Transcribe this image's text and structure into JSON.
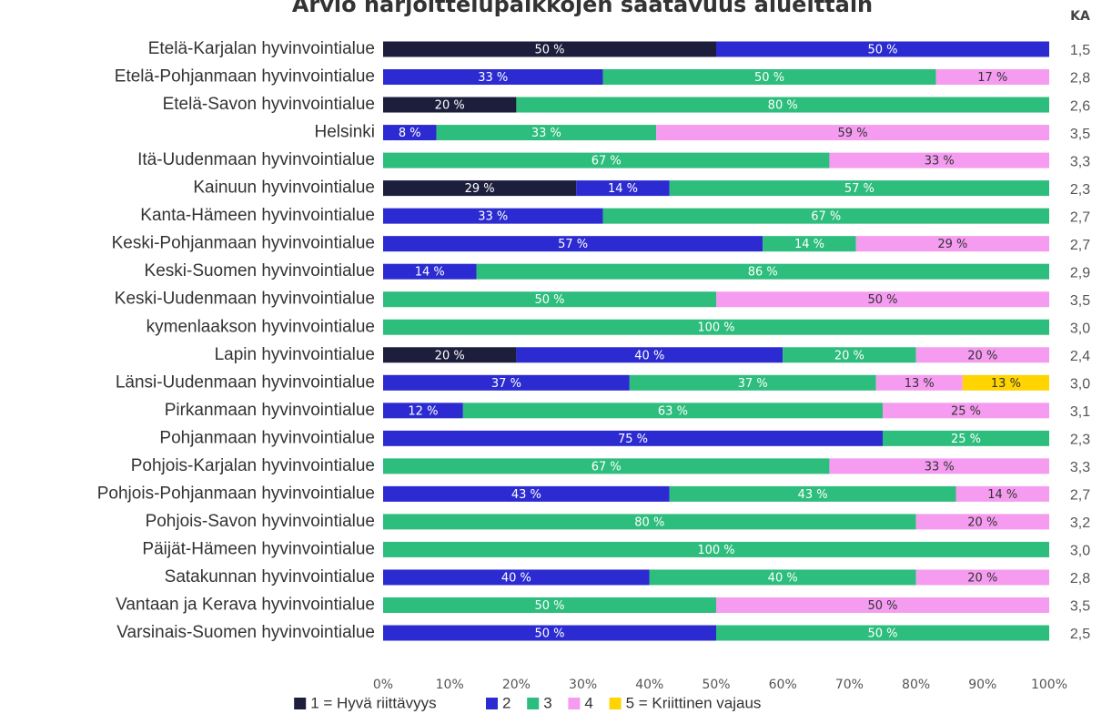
{
  "chart_data": {
    "type": "stacked_bar_horizontal",
    "title": "Arvio harjoittelupaikkojen saatavuus alueittain",
    "categories": [
      "Etelä-Karjalan hyvinvointialue",
      "Etelä-Pohjanmaan hyvinvointialue",
      "Etelä-Savon hyvinvointialue",
      "Helsinki",
      "Itä-Uudenmaan hyvinvointialue",
      "Kainuun hyvinvointialue",
      "Kanta-Hämeen hyvinvointialue",
      "Keski-Pohjanmaan hyvinvointialue",
      "Keski-Suomen hyvinvointialue",
      "Keski-Uudenmaan hyvinvointialue",
      "kymenlaakson hyvinvointialue",
      "Lapin hyvinvointialue",
      "Länsi-Uudenmaan hyvinvointialue",
      "Pirkanmaan hyvinvointialue",
      "Pohjanmaan hyvinvointialue",
      "Pohjois-Karjalan hyvinvointialue",
      "Pohjois-Pohjanmaan hyvinvointialue",
      "Pohjois-Savon hyvinvointialue",
      "Päijät-Hämeen hyvinvointialue",
      "Satakunnan hyvinvointialue",
      "Vantaan ja Kerava hyvinvointialue",
      "Varsinais-Suomen hyvinvointialue"
    ],
    "series": [
      {
        "name": "1 = Hyvä riittävyys",
        "color": "#1c1e3c",
        "values": [
          50,
          null,
          20,
          null,
          null,
          29,
          null,
          null,
          null,
          null,
          null,
          20,
          null,
          null,
          null,
          null,
          null,
          null,
          null,
          null,
          null,
          null
        ],
        "value_labels": [
          "50 %",
          null,
          "20 %",
          null,
          null,
          "29 %",
          null,
          null,
          null,
          null,
          null,
          "20 %",
          null,
          null,
          null,
          null,
          null,
          null,
          null,
          null,
          null,
          null
        ]
      },
      {
        "name": "2",
        "color": "#2b2bd1",
        "values": [
          50,
          33,
          null,
          8,
          null,
          14,
          33,
          57,
          14,
          null,
          null,
          40,
          37,
          12,
          75,
          null,
          43,
          null,
          null,
          40,
          null,
          50
        ],
        "value_labels": [
          "50 %",
          "33 %",
          null,
          "8 %",
          null,
          "14 %",
          "33 %",
          "57 %",
          "14 %",
          null,
          null,
          "40 %",
          "37 %",
          "12 %",
          "75 %",
          null,
          "43 %",
          null,
          null,
          "40 %",
          null,
          "50 %"
        ]
      },
      {
        "name": "3",
        "color": "#2dbd7c",
        "values": [
          null,
          50,
          80,
          33,
          67,
          57,
          67,
          14,
          86,
          50,
          100,
          20,
          37,
          63,
          25,
          67,
          43,
          80,
          100,
          40,
          50,
          50
        ],
        "value_labels": [
          null,
          "50 %",
          "80 %",
          "33 %",
          "67 %",
          "57 %",
          "67 %",
          "14 %",
          "86 %",
          "50 %",
          "100 %",
          "20 %",
          "37 %",
          "63 %",
          "25 %",
          "67 %",
          "43 %",
          "80 %",
          "100 %",
          "40 %",
          "50 %",
          "50 %"
        ]
      },
      {
        "name": "4",
        "color": "#f59cf0",
        "values": [
          null,
          17,
          null,
          59,
          33,
          null,
          null,
          29,
          null,
          50,
          null,
          20,
          13,
          25,
          null,
          33,
          14,
          20,
          null,
          20,
          50,
          null
        ],
        "value_labels": [
          null,
          "17 %",
          null,
          "59 %",
          "33 %",
          null,
          null,
          "29 %",
          null,
          "50 %",
          null,
          "20 %",
          "13 %",
          "25 %",
          null,
          "33 %",
          "14 %",
          "20 %",
          null,
          "20 %",
          "50 %",
          null
        ]
      },
      {
        "name": "5 = Kriittinen vajaus",
        "color": "#ffd400",
        "values": [
          null,
          null,
          null,
          null,
          null,
          null,
          null,
          null,
          null,
          null,
          null,
          null,
          13,
          null,
          null,
          null,
          null,
          null,
          null,
          null,
          null,
          null
        ],
        "value_labels": [
          null,
          null,
          null,
          null,
          null,
          null,
          null,
          null,
          null,
          null,
          null,
          null,
          "13 %",
          null,
          null,
          null,
          null,
          null,
          null,
          null,
          null,
          null
        ]
      }
    ],
    "ka": {
      "title": "KA",
      "values": [
        1.5,
        2.8,
        2.6,
        3.5,
        3.3,
        2.3,
        2.7,
        2.7,
        2.9,
        3.5,
        3.0,
        2.4,
        3.0,
        3.1,
        2.3,
        3.3,
        2.7,
        3.2,
        3.0,
        2.8,
        3.5,
        2.5
      ],
      "value_labels": [
        "1,5",
        "2,8",
        "2,6",
        "3,5",
        "3,3",
        "2,3",
        "2,7",
        "2,7",
        "2,9",
        "3,5",
        "3,0",
        "2,4",
        "3,0",
        "3,1",
        "2,3",
        "3,3",
        "2,7",
        "3,2",
        "3,0",
        "2,8",
        "3,5",
        "2,5"
      ]
    },
    "xlim": [
      0,
      100
    ],
    "xticks": [
      {
        "value": 0,
        "label": "0%"
      },
      {
        "value": 10,
        "label": "10%"
      },
      {
        "value": 20,
        "label": "20%"
      },
      {
        "value": 30,
        "label": "30%"
      },
      {
        "value": 40,
        "label": "40%"
      },
      {
        "value": 50,
        "label": "50%"
      },
      {
        "value": 60,
        "label": "60%"
      },
      {
        "value": 70,
        "label": "70%"
      },
      {
        "value": 80,
        "label": "80%"
      },
      {
        "value": 90,
        "label": "90%"
      },
      {
        "value": 100,
        "label": "100%"
      }
    ],
    "legend": "bottom"
  }
}
